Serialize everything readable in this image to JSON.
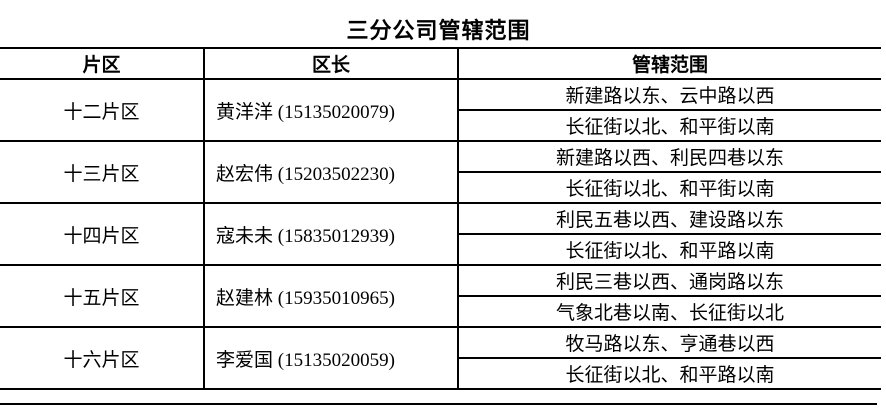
{
  "title": "三分公司管辖范围",
  "table": {
    "headers": [
      "片区",
      "区长",
      "管辖范围"
    ],
    "rows": [
      {
        "district": "十二片区",
        "chief": "黄洋洋 (15135020079)",
        "scopes": [
          "新建路以东、云中路以西",
          "长征街以北、和平街以南"
        ]
      },
      {
        "district": "十三片区",
        "chief": "赵宏伟 (15203502230)",
        "scopes": [
          "新建路以西、利民四巷以东",
          "长征街以北、和平街以南"
        ]
      },
      {
        "district": "十四片区",
        "chief": "寇未未 (15835012939)",
        "scopes": [
          "利民五巷以西、建设路以东",
          "长征街以北、和平路以南"
        ]
      },
      {
        "district": "十五片区",
        "chief": "赵建林 (15935010965)",
        "scopes": [
          "利民三巷以西、通岗路以东",
          "气象北巷以南、长征街以北"
        ]
      },
      {
        "district": "十六片区",
        "chief": "李爱国 (15135020059)",
        "scopes": [
          "牧马路以东、亨通巷以西",
          "长征街以北、和平路以南"
        ]
      }
    ]
  },
  "colors": {
    "border": "#000000",
    "text": "#000000",
    "background": "#ffffff"
  }
}
